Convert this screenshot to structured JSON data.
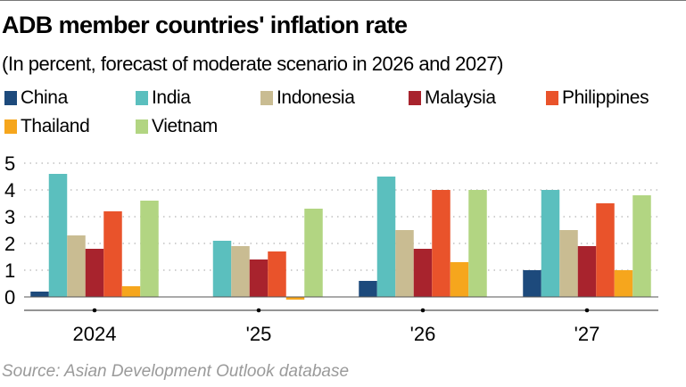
{
  "title": "ADB member countries' inflation rate",
  "subtitle": "(In percent, forecast of moderate scenario in 2026 and 2027)",
  "source": "Source: Asian Development Outlook database",
  "chart_data": {
    "type": "bar",
    "title": "ADB member countries' inflation rate",
    "subtitle": "(In percent, forecast of moderate scenario in 2026 and 2027)",
    "xlabel": "",
    "ylabel": "",
    "categories": [
      "2024",
      "'25",
      "'26",
      "'27"
    ],
    "ylim": [
      -0.5,
      5
    ],
    "yticks": [
      "0",
      "1",
      "2",
      "3",
      "4",
      "5"
    ],
    "grid": true,
    "legend_position": "top",
    "series": [
      {
        "name": "China",
        "color": "#1d4a7c",
        "values": [
          0.2,
          null,
          0.6,
          1.0
        ]
      },
      {
        "name": "India",
        "color": "#5bbfbe",
        "values": [
          4.6,
          2.1,
          4.5,
          4.0
        ]
      },
      {
        "name": "Indonesia",
        "color": "#c9bc92",
        "values": [
          2.3,
          1.9,
          2.5,
          2.5
        ]
      },
      {
        "name": "Malaysia",
        "color": "#a8232d",
        "values": [
          1.8,
          1.4,
          1.8,
          1.9
        ]
      },
      {
        "name": "Philippines",
        "color": "#e9532b",
        "values": [
          3.2,
          1.7,
          4.0,
          3.5
        ]
      },
      {
        "name": "Thailand",
        "color": "#f6a61d",
        "values": [
          0.4,
          -0.1,
          1.3,
          1.0
        ]
      },
      {
        "name": "Vietnam",
        "color": "#b2d582",
        "values": [
          3.6,
          3.3,
          4.0,
          3.8
        ]
      }
    ]
  }
}
